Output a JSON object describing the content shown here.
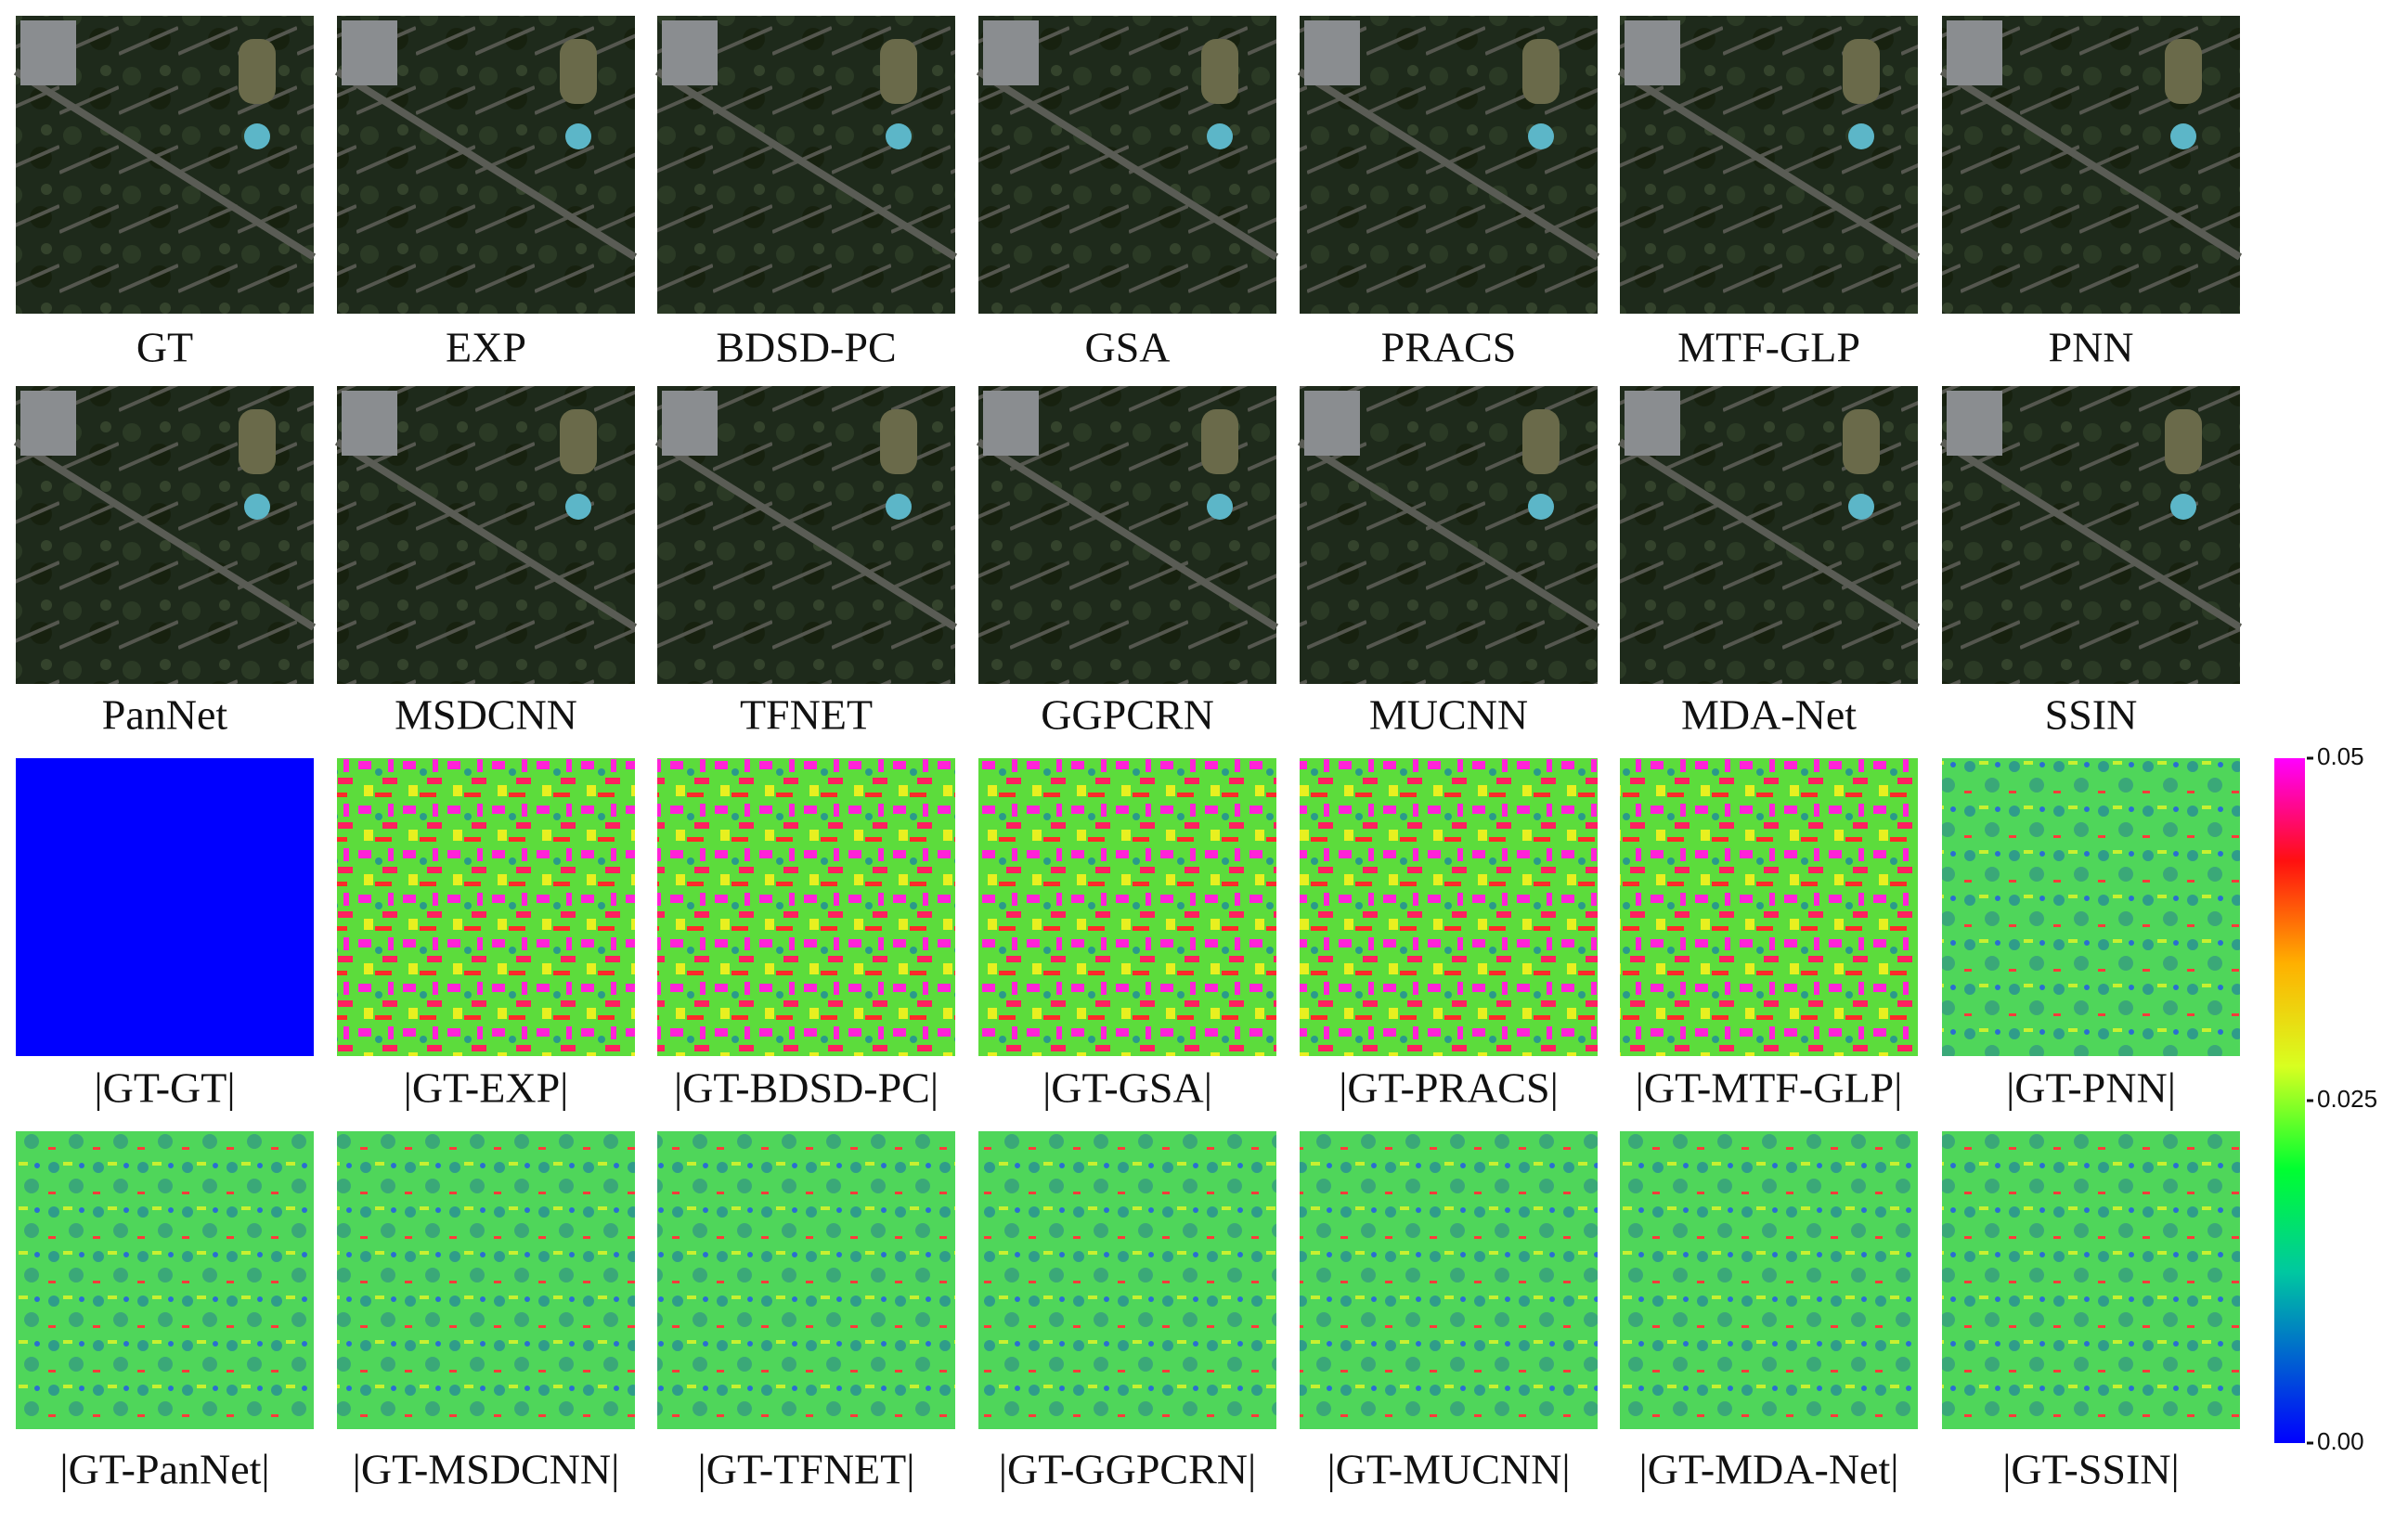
{
  "rows": [
    {
      "labels": [
        "GT",
        "EXP",
        "BDSD-PC",
        "GSA",
        "PRACS",
        "MTF-GLP",
        "PNN"
      ]
    },
    {
      "labels": [
        "PanNet",
        "MSDCNN",
        "TFNET",
        "GGPCRN",
        "MUCNN",
        "MDA-Net",
        "SSIN"
      ]
    },
    {
      "labels": [
        "|GT-GT|",
        "|GT-EXP|",
        "|GT-BDSD-PC|",
        "|GT-GSA|",
        "|GT-PRACS|",
        "|GT-MTF-GLP|",
        "|GT-PNN|"
      ]
    },
    {
      "labels": [
        "|GT-PanNet|",
        "|GT-MSDCNN|",
        "|GT-TFNET|",
        "|GT-GGPCRN|",
        "|GT-MUCNN|",
        "|GT-MDA-Net|",
        "|GT-SSIN|"
      ]
    }
  ],
  "colorbar": {
    "ticks": [
      "0.05",
      "0.025",
      "0.00"
    ]
  }
}
